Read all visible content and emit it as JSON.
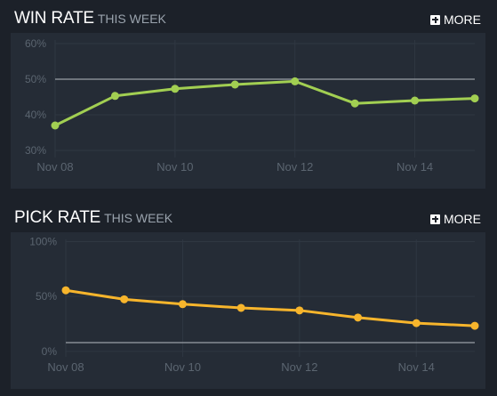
{
  "winrate": {
    "title": "WIN RATE",
    "subtitle": "THIS WEEK",
    "more_label": "MORE"
  },
  "pickrate": {
    "title": "PICK RATE",
    "subtitle": "THIS WEEK",
    "more_label": "MORE"
  },
  "chart_data": [
    {
      "type": "line",
      "title": "WIN RATE",
      "subtitle": "THIS WEEK",
      "x": [
        "Nov 08",
        "Nov 09",
        "Nov 10",
        "Nov 11",
        "Nov 12",
        "Nov 13",
        "Nov 14",
        "Nov 15"
      ],
      "xticks": [
        "Nov 08",
        "Nov 10",
        "Nov 12",
        "Nov 14"
      ],
      "yticks": [
        "30%",
        "40%",
        "50%",
        "60%"
      ],
      "ylim": [
        28,
        61
      ],
      "reference_line": 50,
      "series": [
        {
          "values": [
            37,
            45.3,
            47.3,
            48.5,
            49.4,
            43.2,
            44,
            44.6
          ]
        }
      ],
      "color": "#a2cf52",
      "grid": true
    },
    {
      "type": "line",
      "title": "PICK RATE",
      "subtitle": "THIS WEEK",
      "x": [
        "Nov 08",
        "Nov 09",
        "Nov 10",
        "Nov 11",
        "Nov 12",
        "Nov 13",
        "Nov 14",
        "Nov 15"
      ],
      "xticks": [
        "Nov 08",
        "Nov 10",
        "Nov 12",
        "Nov 14"
      ],
      "yticks": [
        "0%",
        "50%",
        "100%"
      ],
      "ylim": [
        -5,
        102
      ],
      "reference_line": 8,
      "series": [
        {
          "values": [
            55.6,
            47.4,
            43,
            39.6,
            37.3,
            30.8,
            25.7,
            23.3
          ]
        }
      ],
      "color": "#f7b52c",
      "grid": true
    }
  ]
}
